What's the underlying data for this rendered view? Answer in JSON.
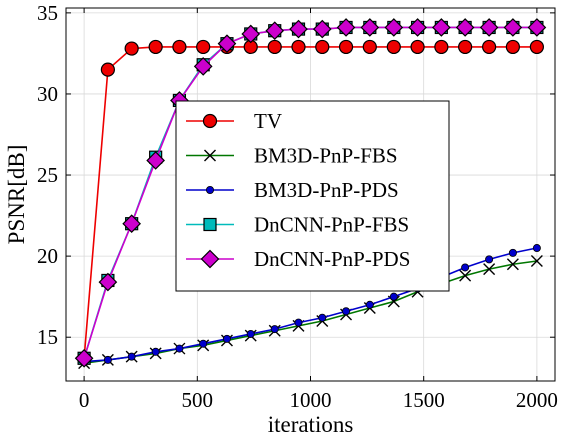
{
  "chart_data": {
    "type": "line",
    "xlabel": "iterations",
    "ylabel": "PSNR[dB]",
    "xlim": [
      -80,
      2080
    ],
    "ylim": [
      12.3,
      35.3
    ],
    "xticks": [
      0,
      500,
      1000,
      1500,
      2000
    ],
    "yticks": [
      15,
      20,
      25,
      30,
      35
    ],
    "grid": true,
    "legend_position": "center",
    "x": [
      0,
      105,
      210,
      316,
      421,
      526,
      631,
      736,
      842,
      947,
      1052,
      1157,
      1262,
      1368,
      1473,
      1578,
      1683,
      1789,
      1894,
      2000
    ],
    "series": [
      {
        "name": "TV",
        "color": "#ee0000",
        "marker": "circle",
        "values": [
          13.7,
          31.5,
          32.8,
          32.9,
          32.9,
          32.9,
          32.9,
          32.9,
          32.9,
          32.9,
          32.9,
          32.9,
          32.9,
          32.9,
          32.9,
          32.9,
          32.9,
          32.9,
          32.9,
          32.9
        ]
      },
      {
        "name": "BM3D-PnP-FBS",
        "color": "#007700",
        "marker": "x",
        "values": [
          13.4,
          13.6,
          13.8,
          14.0,
          14.3,
          14.5,
          14.8,
          15.1,
          15.4,
          15.7,
          16.0,
          16.4,
          16.8,
          17.2,
          17.8,
          18.3,
          18.8,
          19.2,
          19.5,
          19.7
        ]
      },
      {
        "name": "BM3D-PnP-PDS",
        "color": "#0000cc",
        "marker": "dot",
        "values": [
          13.5,
          13.6,
          13.8,
          14.1,
          14.3,
          14.6,
          14.9,
          15.2,
          15.5,
          15.9,
          16.2,
          16.6,
          17.0,
          17.5,
          18.0,
          18.7,
          19.3,
          19.8,
          20.2,
          20.5
        ]
      },
      {
        "name": "DnCNN-PnP-FBS",
        "color": "#00bbbb",
        "marker": "square",
        "values": [
          13.7,
          18.5,
          22.0,
          26.1,
          29.6,
          31.8,
          33.1,
          33.7,
          33.9,
          34.0,
          34.0,
          34.1,
          34.1,
          34.1,
          34.1,
          34.1,
          34.1,
          34.1,
          34.1,
          34.1
        ]
      },
      {
        "name": "DnCNN-PnP-PDS",
        "color": "#cc00cc",
        "marker": "diamond",
        "values": [
          13.7,
          18.4,
          22.0,
          25.9,
          29.6,
          31.7,
          33.1,
          33.7,
          33.9,
          34.0,
          34.0,
          34.1,
          34.1,
          34.1,
          34.1,
          34.1,
          34.1,
          34.1,
          34.1,
          34.1
        ]
      }
    ]
  }
}
